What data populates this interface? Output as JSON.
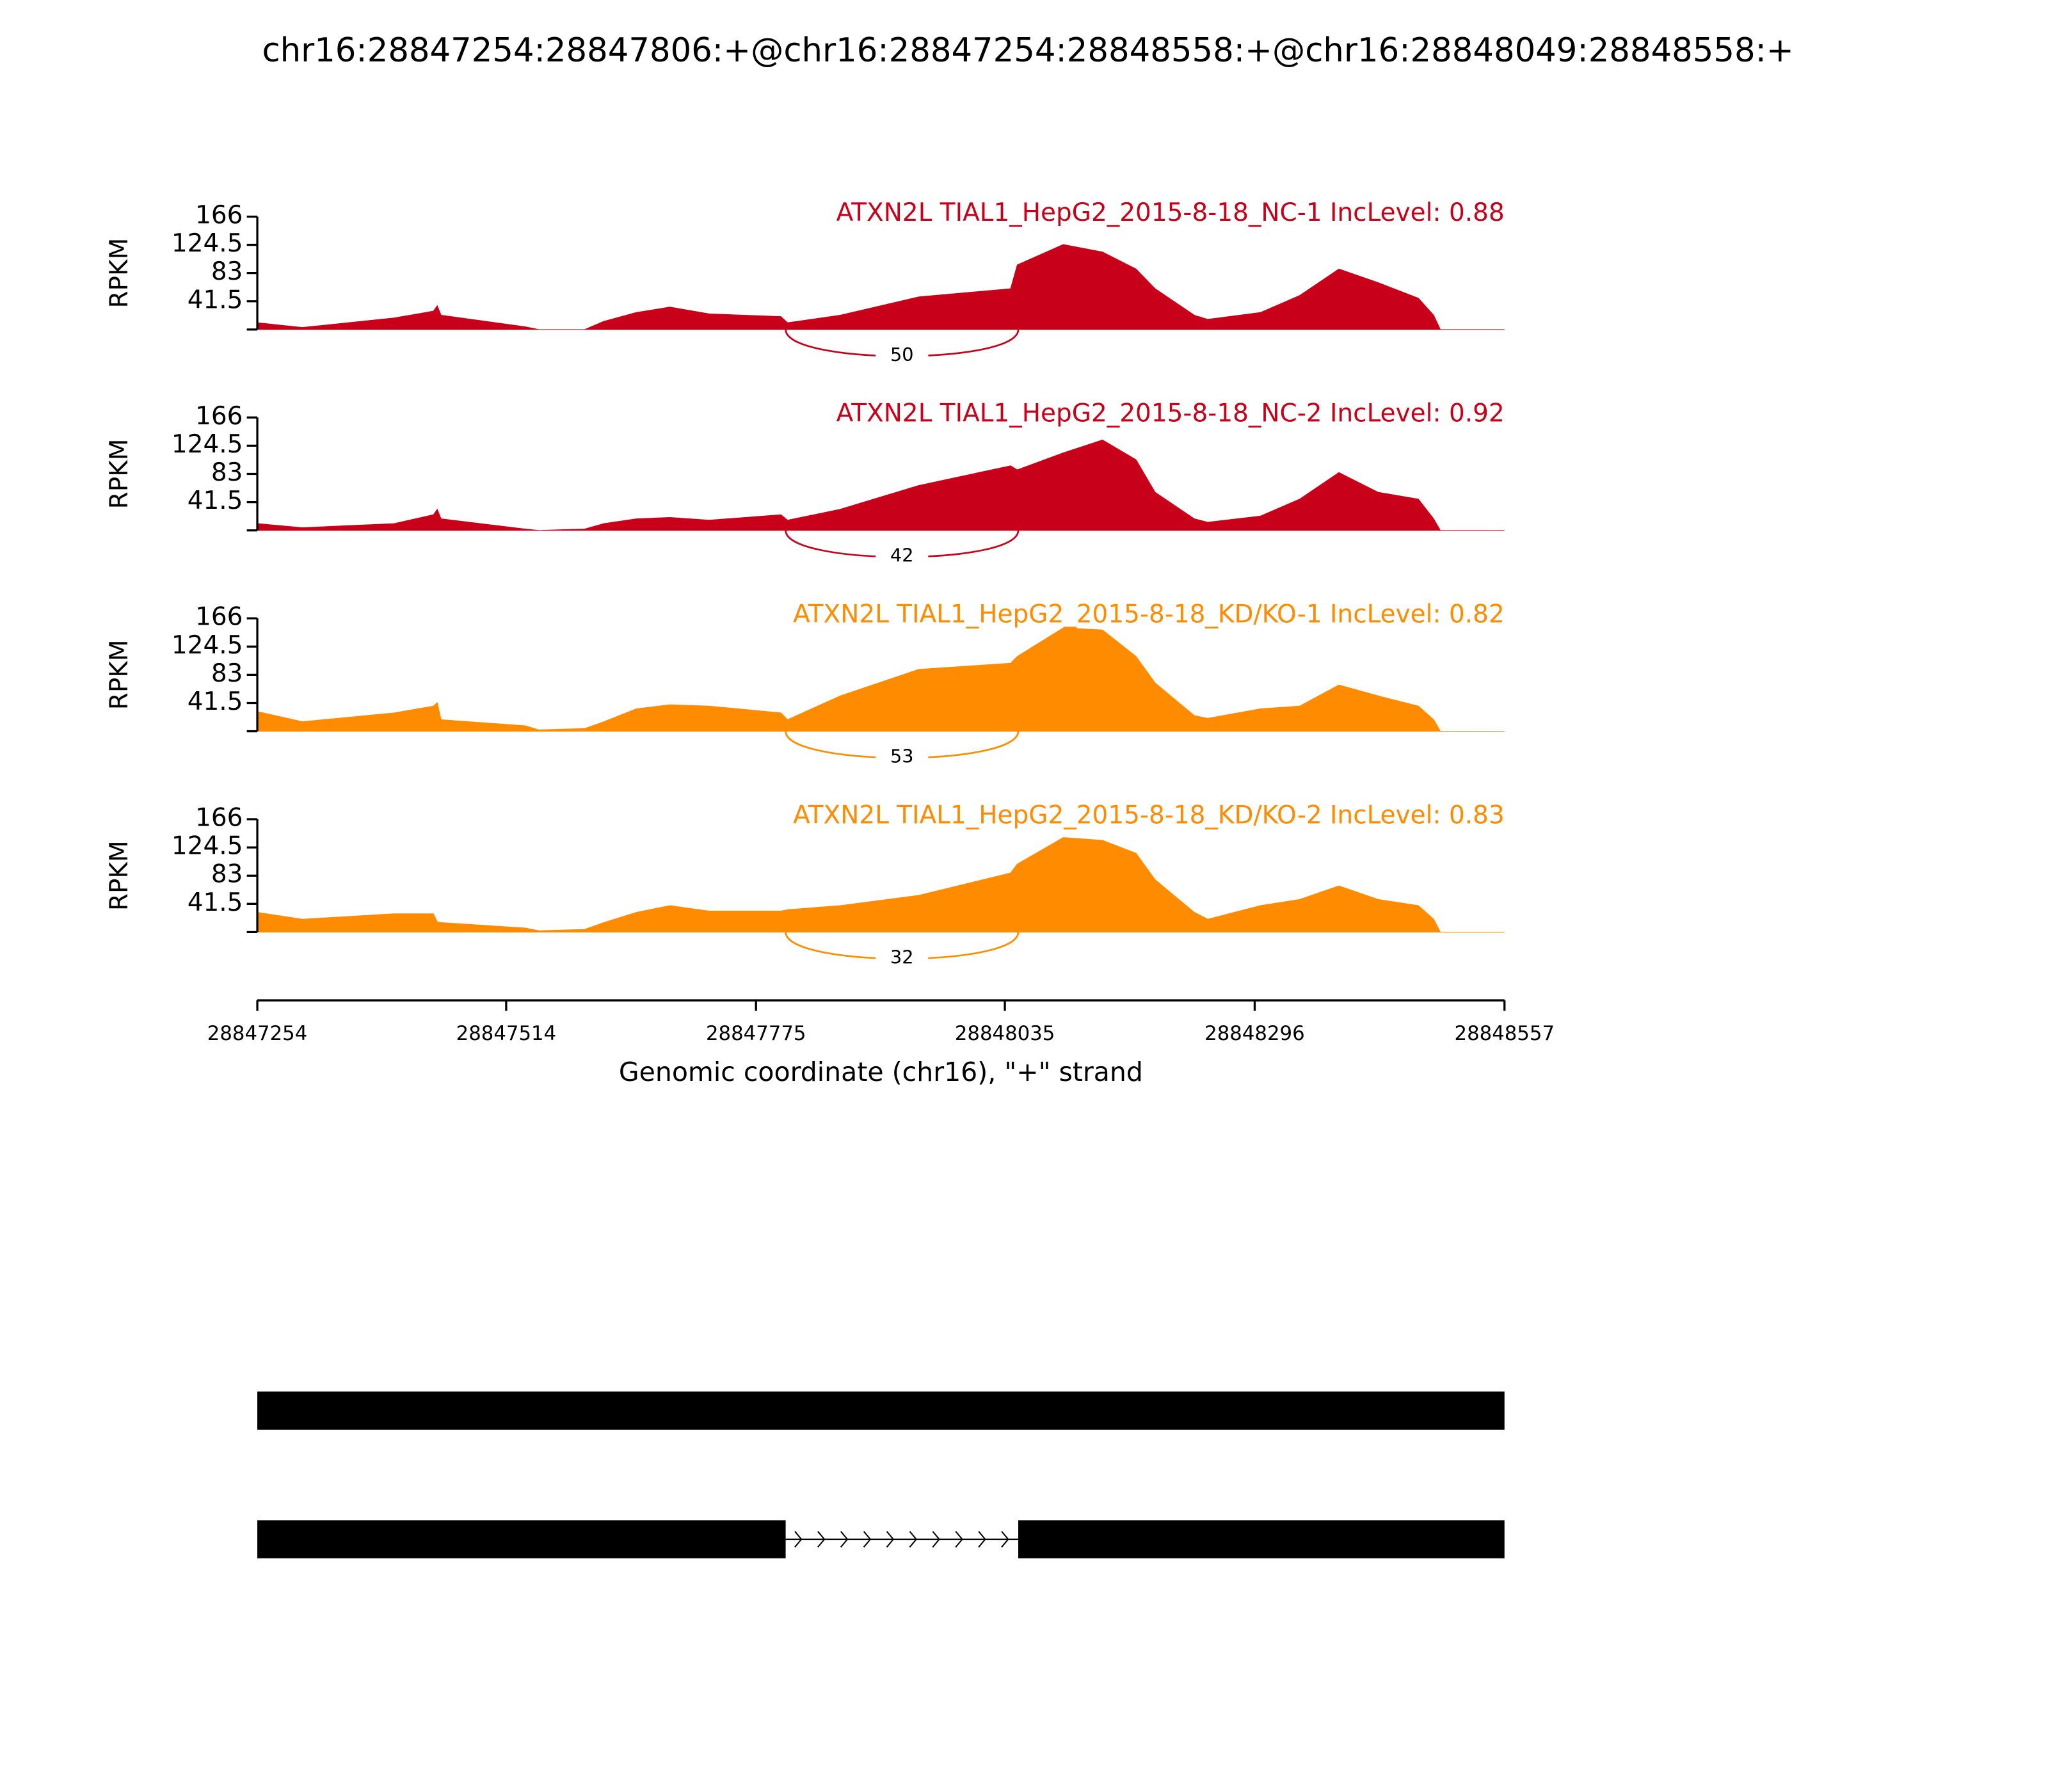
{
  "figure": {
    "title": "chr16:28847254:28847806:+@chr16:28847254:28848558:+@chr16:28848049:28848558:+",
    "xlabel": "Genomic coordinate (chr16), \"+\" strand",
    "xlim": [
      28847254,
      28848557
    ],
    "xticks": [
      28847254,
      28847514,
      28847775,
      28848035,
      28848296,
      28848557
    ]
  },
  "chart_data": [
    {
      "type": "area",
      "title": "ATXN2L TIAL1_HepG2_2015-8-18_NC-1 IncLevel: 0.88",
      "ylabel": "RPKM",
      "color": "#c8001a",
      "ylim": [
        0,
        166
      ],
      "yticks": [
        41.5,
        83,
        124.5,
        166
      ],
      "x": [
        28847254,
        28847301,
        28847397,
        28847438,
        28847442,
        28847446,
        28847534,
        28847548,
        28847596,
        28847616,
        28847650,
        28847685,
        28847726,
        28847801,
        28847808,
        28847863,
        28847945,
        28848041,
        28848048,
        28848096,
        28848137,
        28848172,
        28848192,
        28848233,
        28848247,
        28848302,
        28848343,
        28848384,
        28848425,
        28848467,
        28848483,
        28848490,
        28848557
      ],
      "values": [
        10,
        3,
        17,
        27,
        35,
        21,
        4,
        0,
        0,
        12,
        25,
        33,
        23,
        19,
        10,
        21,
        48,
        60,
        95,
        125,
        114,
        89,
        60,
        21,
        15,
        25,
        50,
        89,
        69,
        46,
        21,
        0,
        0
      ],
      "junction": {
        "start": 28847806,
        "end": 28848049,
        "count": 50
      }
    },
    {
      "type": "area",
      "title": "ATXN2L TIAL1_HepG2_2015-8-18_NC-2 IncLevel: 0.92",
      "ylabel": "RPKM",
      "color": "#c8001a",
      "ylim": [
        0,
        166
      ],
      "yticks": [
        41.5,
        83,
        124.5,
        166
      ],
      "x": [
        28847254,
        28847301,
        28847397,
        28847438,
        28847442,
        28847446,
        28847534,
        28847548,
        28847596,
        28847616,
        28847650,
        28847685,
        28847726,
        28847801,
        28847808,
        28847863,
        28847945,
        28848041,
        28848048,
        28848096,
        28848137,
        28848172,
        28848192,
        28848233,
        28848247,
        28848302,
        28848343,
        28848384,
        28848425,
        28848467,
        28848483,
        28848490,
        28848557
      ],
      "values": [
        10,
        4,
        10,
        23,
        31,
        17,
        2,
        0,
        2,
        10,
        17,
        19,
        15,
        23,
        15,
        31,
        66,
        95,
        89,
        114,
        133,
        104,
        56,
        17,
        12,
        21,
        46,
        85,
        56,
        46,
        17,
        0,
        0
      ],
      "junction": {
        "start": 28847806,
        "end": 28848049,
        "count": 42
      }
    },
    {
      "type": "area",
      "title": "ATXN2L TIAL1_HepG2_2015-8-18_KD/KO-1 IncLevel: 0.82",
      "ylabel": "RPKM",
      "color": "#ff8c00",
      "ylim": [
        0,
        166
      ],
      "yticks": [
        41.5,
        83,
        124.5,
        166
      ],
      "x": [
        28847254,
        28847301,
        28847397,
        28847438,
        28847442,
        28847446,
        28847534,
        28847548,
        28847596,
        28847616,
        28847650,
        28847685,
        28847726,
        28847801,
        28847808,
        28847863,
        28847945,
        28848041,
        28848048,
        28848096,
        28848137,
        28848172,
        28848192,
        28848233,
        28848247,
        28848302,
        28848343,
        28848384,
        28848425,
        28848467,
        28848483,
        28848490,
        28848557
      ],
      "values": [
        29,
        14,
        27,
        37,
        42,
        17,
        8,
        2,
        4,
        14,
        33,
        39,
        37,
        27,
        17,
        52,
        91,
        100,
        110,
        152,
        149,
        110,
        71,
        23,
        19,
        33,
        37,
        68,
        52,
        37,
        17,
        0,
        0
      ],
      "junction": {
        "start": 28847806,
        "end": 28848049,
        "count": 53
      }
    },
    {
      "type": "area",
      "title": "ATXN2L TIAL1_HepG2_2015-8-18_KD/KO-2 IncLevel: 0.83",
      "ylabel": "RPKM",
      "color": "#ff8c00",
      "ylim": [
        0,
        166
      ],
      "yticks": [
        41.5,
        83,
        124.5,
        166
      ],
      "x": [
        28847254,
        28847301,
        28847397,
        28847438,
        28847442,
        28847446,
        28847534,
        28847548,
        28847596,
        28847616,
        28847650,
        28847685,
        28847726,
        28847801,
        28847808,
        28847863,
        28847945,
        28848041,
        28848048,
        28848096,
        28848137,
        28848172,
        28848192,
        28848233,
        28848247,
        28848302,
        28848343,
        28848384,
        28848425,
        28848467,
        28848483,
        28848490,
        28848557
      ],
      "values": [
        29,
        19,
        27,
        27,
        15,
        14,
        6,
        2,
        4,
        14,
        29,
        39,
        31,
        31,
        33,
        39,
        54,
        87,
        100,
        139,
        135,
        116,
        77,
        29,
        19,
        39,
        48,
        68,
        48,
        39,
        19,
        0,
        0
      ],
      "junction": {
        "start": 28847806,
        "end": 28848049,
        "count": 32
      }
    }
  ],
  "gene_model": {
    "transcripts": [
      {
        "exons": [
          [
            28847254,
            28848557
          ]
        ]
      },
      {
        "exons": [
          [
            28847254,
            28847806
          ],
          [
            28848049,
            28848557
          ]
        ]
      }
    ]
  }
}
